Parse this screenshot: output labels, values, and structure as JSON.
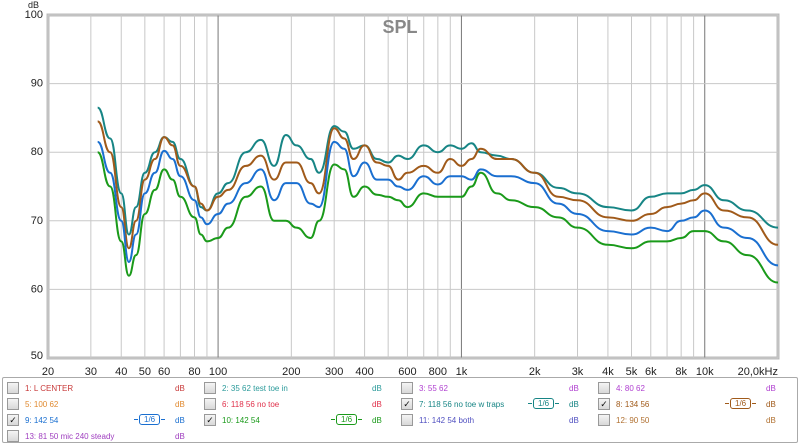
{
  "chart_data": {
    "type": "line",
    "title": "SPL",
    "ylabel": "dB",
    "xlabel": "",
    "xscale": "log",
    "xlim": [
      20,
      20000
    ],
    "ylim": [
      50,
      100
    ],
    "yticks": [
      50,
      60,
      70,
      80,
      90,
      100
    ],
    "xticks": [
      {
        "v": 20,
        "l": "20"
      },
      {
        "v": 30,
        "l": "30"
      },
      {
        "v": 40,
        "l": "40"
      },
      {
        "v": 50,
        "l": "50"
      },
      {
        "v": 60,
        "l": "60"
      },
      {
        "v": 80,
        "l": "80"
      },
      {
        "v": 100,
        "l": "100"
      },
      {
        "v": 200,
        "l": "200"
      },
      {
        "v": 300,
        "l": "300"
      },
      {
        "v": 400,
        "l": "400"
      },
      {
        "v": 600,
        "l": "600"
      },
      {
        "v": 800,
        "l": "800"
      },
      {
        "v": 1000,
        "l": "1k"
      },
      {
        "v": 2000,
        "l": "2k"
      },
      {
        "v": 3000,
        "l": "3k"
      },
      {
        "v": 4000,
        "l": "4k"
      },
      {
        "v": 5000,
        "l": "5k"
      },
      {
        "v": 6000,
        "l": "6k"
      },
      {
        "v": 8000,
        "l": "8k"
      },
      {
        "v": 10000,
        "l": "10k"
      },
      {
        "v": 20000,
        "l": "20,0kHz"
      }
    ],
    "grid": true,
    "x": [
      32,
      36,
      40,
      43,
      46,
      50,
      55,
      60,
      65,
      70,
      80,
      85,
      90,
      100,
      110,
      130,
      150,
      170,
      190,
      210,
      240,
      260,
      300,
      330,
      360,
      400,
      450,
      500,
      550,
      600,
      700,
      800,
      900,
      1000,
      1100,
      1200,
      1400,
      1600,
      2000,
      2500,
      3000,
      4000,
      5000,
      6000,
      7000,
      8000,
      9000,
      10000,
      12000,
      15000,
      20000
    ],
    "series": [
      {
        "name": "7: 118 56 no toe w traps",
        "color": "#178585",
        "values": [
          86.5,
          82,
          74,
          68,
          72,
          77,
          80,
          82.2,
          81.5,
          79,
          75,
          72,
          71.5,
          74,
          75.5,
          80,
          81.8,
          78,
          82.5,
          81,
          79,
          77,
          83.8,
          83,
          80.5,
          81,
          79,
          78.5,
          79.5,
          79,
          81,
          80,
          81,
          80.5,
          81.3,
          80,
          79.5,
          79,
          77,
          74.8,
          74,
          72,
          71.5,
          73.5,
          74,
          74,
          74.5,
          75.2,
          73,
          71.5,
          69
        ]
      },
      {
        "name": "8: 134 56",
        "color": "#a05a1a",
        "values": [
          84.5,
          80,
          72,
          66,
          70,
          76,
          79,
          82.2,
          81,
          78,
          75,
          72.5,
          71.5,
          73.5,
          74.5,
          78,
          79.5,
          76,
          78.5,
          78.5,
          75.5,
          74,
          83.5,
          82,
          79,
          81,
          78.5,
          78,
          76,
          77,
          78,
          77,
          79,
          78,
          79,
          80.5,
          79,
          79,
          77,
          73.5,
          73,
          70.5,
          70,
          71,
          72,
          72.5,
          73,
          74,
          71.5,
          70.5,
          66.5
        ]
      },
      {
        "name": "9: 142 54",
        "color": "#1a6fd0",
        "values": [
          81.5,
          77,
          70,
          64,
          68,
          74,
          77,
          80.2,
          79,
          76.5,
          73,
          70.5,
          69.5,
          71,
          72.5,
          75.5,
          77.5,
          73,
          75.5,
          75.5,
          72.5,
          72,
          81.5,
          80.5,
          76.5,
          78.5,
          76,
          76,
          75,
          74.5,
          76.5,
          75.3,
          76.5,
          76.5,
          76,
          77.5,
          76.5,
          76.5,
          75.5,
          72.5,
          71,
          68.5,
          68,
          69,
          68.5,
          70,
          70.5,
          71.5,
          69,
          67.5,
          63.5
        ]
      },
      {
        "name": "10: 142 54",
        "color": "#1a9a1a",
        "values": [
          80,
          75,
          67,
          62,
          65,
          71,
          74.5,
          77.5,
          76,
          73.5,
          70.5,
          68,
          67,
          67.5,
          69,
          73.5,
          75,
          70,
          70,
          69,
          67.5,
          70,
          78.2,
          77.5,
          73.5,
          75,
          73.8,
          73.5,
          73,
          72,
          74,
          73.5,
          73.5,
          73.5,
          75,
          77,
          74,
          73,
          72,
          70.5,
          69,
          66.5,
          66,
          67,
          67,
          67.5,
          68.5,
          68.5,
          67,
          65,
          61
        ]
      }
    ]
  },
  "legend": [
    {
      "label": "1: L CENTER",
      "checked": false,
      "unit": "dB",
      "color": "#c83a3a",
      "smoothing": ""
    },
    {
      "label": "2: 35 62 test toe in",
      "checked": false,
      "unit": "dB",
      "color": "#2a9a9a",
      "smoothing": ""
    },
    {
      "label": "3: 55 62",
      "checked": false,
      "unit": "dB",
      "color": "#b040d0",
      "smoothing": ""
    },
    {
      "label": "4: 80 62",
      "checked": false,
      "unit": "dB",
      "color": "#b040d0",
      "smoothing": ""
    },
    {
      "label": "5: 100 62",
      "checked": false,
      "unit": "dB",
      "color": "#e08a30",
      "smoothing": ""
    },
    {
      "label": "6: 118 56 no toe",
      "checked": false,
      "unit": "dB",
      "color": "#e0304a",
      "smoothing": ""
    },
    {
      "label": "7: 118 56 no toe w traps",
      "checked": true,
      "unit": "dB",
      "color": "#178585",
      "smoothing": "1/6"
    },
    {
      "label": "8: 134 56",
      "checked": true,
      "unit": "dB",
      "color": "#a05a1a",
      "smoothing": "1/6"
    },
    {
      "label": "9: 142 54",
      "checked": true,
      "unit": "dB",
      "color": "#1a6fd0",
      "smoothing": "1/6"
    },
    {
      "label": "10: 142 54",
      "checked": true,
      "unit": "dB",
      "color": "#1a9a1a",
      "smoothing": "1/6"
    },
    {
      "label": "11: 142 54 both",
      "checked": false,
      "unit": "dB",
      "color": "#5050c0",
      "smoothing": ""
    },
    {
      "label": "12: 90 50",
      "checked": false,
      "unit": "dB",
      "color": "#b07030",
      "smoothing": ""
    },
    {
      "label": "13: 81 50 mic 240 steady",
      "checked": false,
      "unit": "dB",
      "color": "#a040c0",
      "smoothing": ""
    }
  ]
}
